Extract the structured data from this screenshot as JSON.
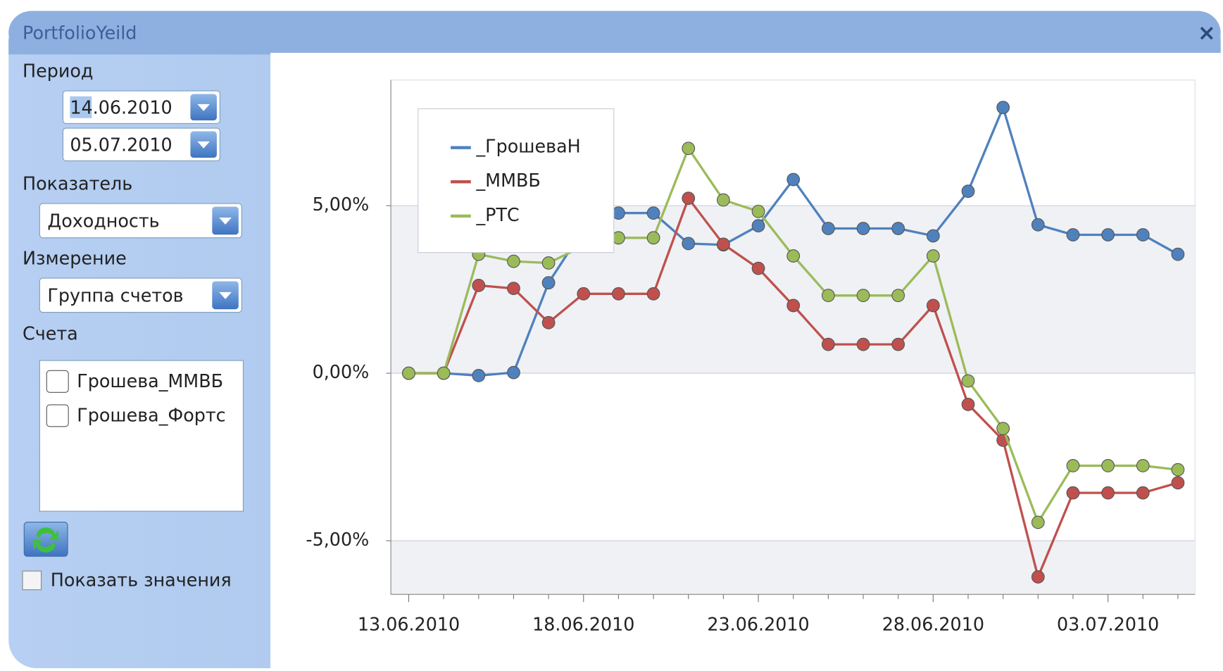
{
  "window": {
    "title": "PortfolioYeild",
    "close": "×"
  },
  "panel": {
    "period_label": "Период",
    "date_from": "14.06.2010",
    "date_to": "05.07.2010",
    "metric_label": "Показатель",
    "metric": "Доходность",
    "dimension_label": "Измерение",
    "dimension": "Группа счетов",
    "accounts_label": "Счета",
    "accounts": [
      "Грошева_ММВБ",
      "Грошева_Фортс"
    ],
    "show_values": "Показать значения"
  },
  "chart_data": {
    "type": "line",
    "categories": [
      "13.06.2010",
      null,
      null,
      null,
      null,
      "18.06.2010",
      null,
      null,
      null,
      null,
      "23.06.2010",
      null,
      null,
      null,
      null,
      "28.06.2010",
      null,
      null,
      null,
      null,
      "03.07.2010",
      null,
      null
    ],
    "series": [
      {
        "name": "_ГрошеваН",
        "color": "#4f81bd",
        "values": [
          0,
          0,
          -0.07,
          0.02,
          2.7,
          4.3,
          4.78,
          4.78,
          3.87,
          3.83,
          4.4,
          5.78,
          4.32,
          4.32,
          4.32,
          4.1,
          5.43,
          7.93,
          4.43,
          4.13,
          4.13,
          4.13,
          3.55
        ]
      },
      {
        "name": "_ММВБ",
        "color": "#c0504d",
        "values": [
          0,
          0,
          2.62,
          2.53,
          1.51,
          2.37,
          2.37,
          2.37,
          5.22,
          3.85,
          3.13,
          2.02,
          0.86,
          0.86,
          0.86,
          2.02,
          -0.93,
          -2.0,
          -6.08,
          -3.57,
          -3.57,
          -3.57,
          -3.27
        ]
      },
      {
        "name": "_РТС",
        "color": "#9bbb59",
        "values": [
          0,
          0,
          3.55,
          3.34,
          3.29,
          3.8,
          4.04,
          4.04,
          6.71,
          5.17,
          4.83,
          3.5,
          2.32,
          2.32,
          2.32,
          3.5,
          -0.23,
          -1.65,
          -4.45,
          -2.76,
          -2.76,
          -2.76,
          -2.88
        ]
      }
    ],
    "ylim": [
      -6.6,
      8.75
    ],
    "yticks": [
      {
        "value": -5,
        "label": "-5,00%"
      },
      {
        "value": 0,
        "label": "0,00%"
      },
      {
        "value": 5,
        "label": "5,00%"
      }
    ],
    "grid": true,
    "legend": "top-left"
  }
}
